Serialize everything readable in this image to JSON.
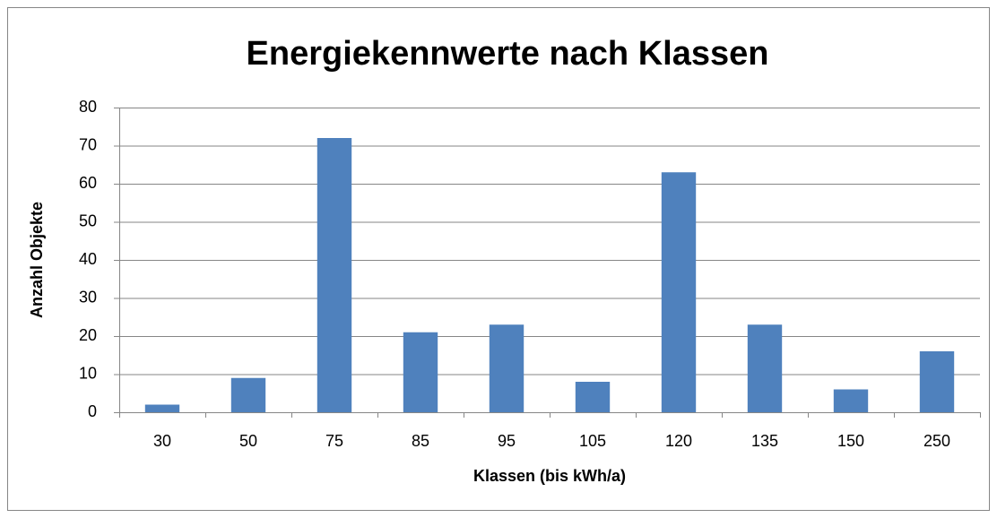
{
  "chart_data": {
    "type": "bar",
    "title": "Energiekennwerte nach Klassen",
    "x_label": "Klassen (bis kWh/a)",
    "y_label": "Anzahl Objekte",
    "categories": [
      "30",
      "50",
      "75",
      "85",
      "95",
      "105",
      "120",
      "135",
      "150",
      "250"
    ],
    "values": [
      2,
      9,
      72,
      21,
      23,
      8,
      63,
      23,
      6,
      16
    ],
    "color": "#4f81bd",
    "ylim": [
      0,
      80
    ],
    "yticks": [
      0,
      10,
      20,
      30,
      40,
      50,
      60,
      70,
      80
    ],
    "grid": true
  }
}
